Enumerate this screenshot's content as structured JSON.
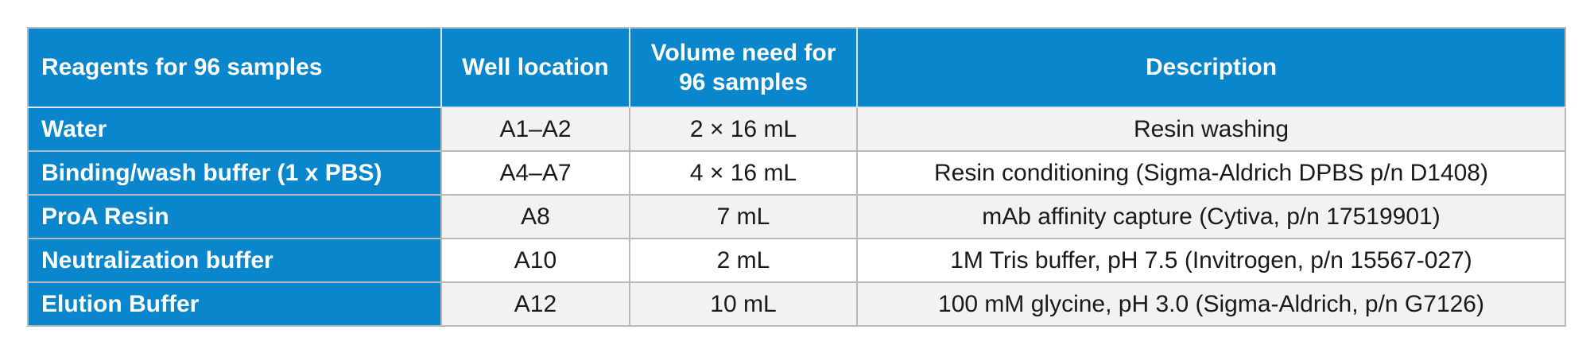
{
  "table": {
    "headers": [
      "Reagents for 96 samples",
      "Well location",
      "Volume need for 96 samples",
      "Description"
    ],
    "rows": [
      {
        "reagent": "Water",
        "well": "A1–A2",
        "volume": "2 × 16 mL",
        "description": "Resin washing"
      },
      {
        "reagent": "Binding/wash buffer (1 x PBS)",
        "well": "A4–A7",
        "volume": "4 × 16 mL",
        "description": "Resin conditioning (Sigma-Aldrich DPBS p/n D1408)"
      },
      {
        "reagent": "ProA Resin",
        "well": "A8",
        "volume": "7 mL",
        "description": "mAb affinity capture (Cytiva, p/n 17519901)"
      },
      {
        "reagent": "Neutralization buffer",
        "well": "A10",
        "volume": "2 mL",
        "description": "1M Tris buffer, pH 7.5 (Invitrogen, p/n 15567-027)"
      },
      {
        "reagent": "Elution Buffer",
        "well": "A12",
        "volume": "10 mL",
        "description": "100 mM glycine, pH 3.0 (Sigma-Aldrich, p/n G7126)"
      }
    ]
  },
  "colors": {
    "header_bg": "#0a87cc",
    "header_text": "#ffffff",
    "row_alt_bg": "#f2f2f2",
    "border": "#b9b9b9"
  }
}
